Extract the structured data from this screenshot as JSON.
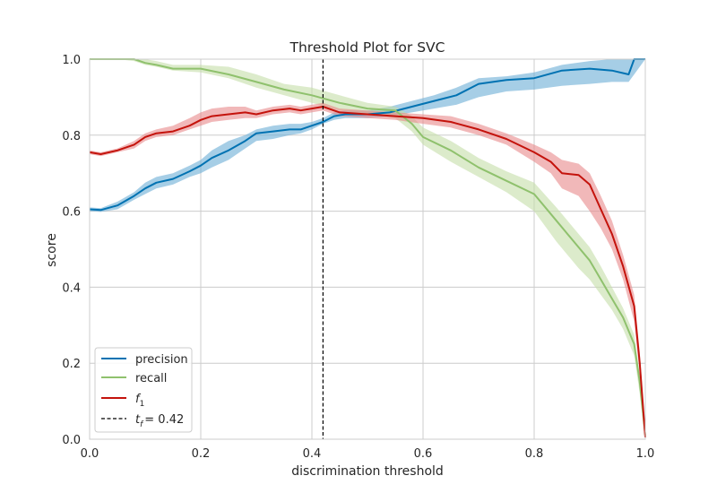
{
  "chart_data": {
    "type": "line",
    "title": "Threshold Plot for SVC",
    "xlabel": "discrimination threshold",
    "ylabel": "score",
    "xlim": [
      0.0,
      1.0
    ],
    "ylim": [
      0.0,
      1.0
    ],
    "xticks": [
      "0.0",
      "0.2",
      "0.4",
      "0.6",
      "0.8",
      "1.0"
    ],
    "yticks": [
      "0.0",
      "0.2",
      "0.4",
      "0.6",
      "0.8",
      "1.0"
    ],
    "grid": true,
    "legend_position": "lower-left",
    "threshold": {
      "label_text": "= 0.42",
      "value": 0.42,
      "color": "#000000"
    },
    "series": [
      {
        "name": "precision",
        "color": "#0072b2",
        "band_color": "#6aaed6",
        "x": [
          0.0,
          0.02,
          0.05,
          0.08,
          0.1,
          0.12,
          0.15,
          0.18,
          0.2,
          0.22,
          0.25,
          0.28,
          0.3,
          0.33,
          0.36,
          0.38,
          0.4,
          0.42,
          0.44,
          0.46,
          0.5,
          0.54,
          0.58,
          0.62,
          0.66,
          0.7,
          0.75,
          0.8,
          0.85,
          0.9,
          0.94,
          0.97,
          0.98,
          1.0
        ],
        "y": [
          0.605,
          0.603,
          0.615,
          0.64,
          0.66,
          0.675,
          0.685,
          0.705,
          0.72,
          0.74,
          0.76,
          0.785,
          0.805,
          0.81,
          0.815,
          0.815,
          0.825,
          0.835,
          0.85,
          0.855,
          0.855,
          0.86,
          0.875,
          0.89,
          0.905,
          0.935,
          0.945,
          0.95,
          0.97,
          0.975,
          0.97,
          0.96,
          1.0,
          1.0
        ],
        "lower": [
          0.6,
          0.598,
          0.605,
          0.63,
          0.645,
          0.66,
          0.67,
          0.69,
          0.7,
          0.715,
          0.735,
          0.765,
          0.785,
          0.79,
          0.8,
          0.805,
          0.815,
          0.83,
          0.84,
          0.845,
          0.845,
          0.85,
          0.86,
          0.87,
          0.88,
          0.9,
          0.915,
          0.92,
          0.93,
          0.935,
          0.94,
          0.94,
          0.96,
          1.0
        ],
        "upper": [
          0.61,
          0.608,
          0.625,
          0.65,
          0.675,
          0.69,
          0.7,
          0.72,
          0.735,
          0.76,
          0.785,
          0.8,
          0.815,
          0.825,
          0.83,
          0.83,
          0.835,
          0.845,
          0.86,
          0.865,
          0.865,
          0.875,
          0.89,
          0.905,
          0.925,
          0.95,
          0.955,
          0.965,
          0.985,
          0.995,
          1.0,
          1.0,
          1.0,
          1.0
        ]
      },
      {
        "name": "recall",
        "color": "#8fc16d",
        "band_color": "#c5dea8",
        "x": [
          0.0,
          0.05,
          0.08,
          0.1,
          0.12,
          0.15,
          0.2,
          0.25,
          0.3,
          0.35,
          0.4,
          0.45,
          0.5,
          0.55,
          0.58,
          0.6,
          0.65,
          0.7,
          0.75,
          0.8,
          0.84,
          0.88,
          0.9,
          0.92,
          0.94,
          0.96,
          0.98,
          0.99,
          1.0
        ],
        "y": [
          1.0,
          1.0,
          1.0,
          0.99,
          0.985,
          0.975,
          0.975,
          0.96,
          0.94,
          0.92,
          0.905,
          0.885,
          0.87,
          0.865,
          0.83,
          0.795,
          0.76,
          0.715,
          0.68,
          0.645,
          0.575,
          0.505,
          0.47,
          0.42,
          0.37,
          0.32,
          0.25,
          0.15,
          0.01
        ],
        "lower": [
          1.0,
          1.0,
          0.995,
          0.985,
          0.98,
          0.97,
          0.965,
          0.95,
          0.925,
          0.905,
          0.885,
          0.865,
          0.855,
          0.845,
          0.81,
          0.775,
          0.73,
          0.69,
          0.65,
          0.6,
          0.52,
          0.45,
          0.42,
          0.38,
          0.34,
          0.29,
          0.22,
          0.12,
          0.0
        ],
        "upper": [
          1.0,
          1.0,
          1.0,
          1.0,
          0.995,
          0.985,
          0.985,
          0.98,
          0.96,
          0.935,
          0.925,
          0.905,
          0.885,
          0.875,
          0.85,
          0.82,
          0.785,
          0.74,
          0.705,
          0.675,
          0.61,
          0.54,
          0.505,
          0.455,
          0.4,
          0.345,
          0.275,
          0.17,
          0.02
        ]
      },
      {
        "name": "f1",
        "color": "#c4130c",
        "band_color": "#e8888a",
        "x": [
          0.0,
          0.02,
          0.05,
          0.08,
          0.1,
          0.12,
          0.15,
          0.18,
          0.2,
          0.22,
          0.25,
          0.28,
          0.3,
          0.33,
          0.36,
          0.38,
          0.4,
          0.42,
          0.45,
          0.5,
          0.55,
          0.6,
          0.65,
          0.7,
          0.75,
          0.8,
          0.83,
          0.85,
          0.88,
          0.9,
          0.92,
          0.94,
          0.96,
          0.98,
          0.99,
          1.0
        ],
        "y": [
          0.755,
          0.75,
          0.76,
          0.775,
          0.795,
          0.805,
          0.81,
          0.825,
          0.84,
          0.85,
          0.855,
          0.86,
          0.855,
          0.865,
          0.87,
          0.865,
          0.87,
          0.875,
          0.86,
          0.855,
          0.85,
          0.845,
          0.835,
          0.815,
          0.79,
          0.755,
          0.73,
          0.7,
          0.695,
          0.67,
          0.605,
          0.54,
          0.455,
          0.35,
          0.2,
          0.005
        ],
        "lower": [
          0.75,
          0.745,
          0.755,
          0.765,
          0.785,
          0.795,
          0.8,
          0.815,
          0.825,
          0.835,
          0.84,
          0.845,
          0.845,
          0.855,
          0.86,
          0.855,
          0.86,
          0.865,
          0.85,
          0.845,
          0.84,
          0.83,
          0.82,
          0.8,
          0.775,
          0.73,
          0.7,
          0.66,
          0.64,
          0.6,
          0.555,
          0.5,
          0.42,
          0.31,
          0.17,
          0.0
        ],
        "upper": [
          0.76,
          0.755,
          0.765,
          0.785,
          0.805,
          0.815,
          0.825,
          0.845,
          0.86,
          0.87,
          0.875,
          0.875,
          0.865,
          0.875,
          0.88,
          0.875,
          0.88,
          0.885,
          0.87,
          0.865,
          0.86,
          0.855,
          0.85,
          0.83,
          0.805,
          0.775,
          0.755,
          0.735,
          0.725,
          0.7,
          0.64,
          0.575,
          0.485,
          0.38,
          0.23,
          0.02
        ]
      }
    ]
  }
}
